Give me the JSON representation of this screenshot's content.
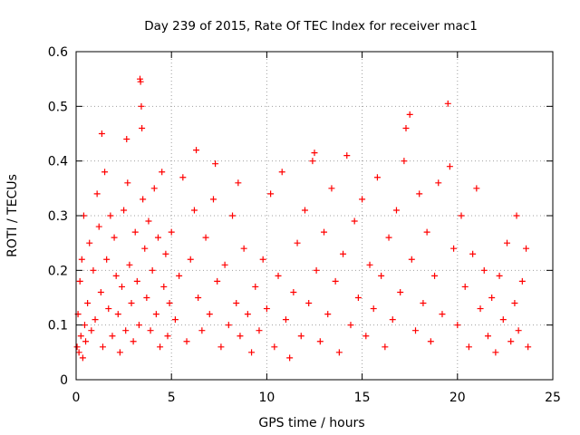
{
  "chart_data": {
    "type": "scatter",
    "title": "Day 239 of 2015, Rate Of TEC Index for receiver mac1",
    "xlabel": "GPS time / hours",
    "ylabel": "ROTI / TECUs",
    "xlim": [
      0,
      25
    ],
    "ylim": [
      0,
      0.6
    ],
    "x_ticks": [
      0,
      5,
      10,
      15,
      20,
      25
    ],
    "x_tick_labels": [
      "0",
      "5",
      "10",
      "15",
      "20",
      "25"
    ],
    "y_ticks": [
      0,
      0.1,
      0.2,
      0.3,
      0.4,
      0.5,
      0.6
    ],
    "y_tick_labels": [
      "0",
      "0.1",
      "0.2",
      "0.3",
      "0.4",
      "0.5",
      "0.6"
    ],
    "grid": true,
    "marker": "+",
    "marker_color": "#ff0000",
    "series": [
      {
        "values": [
          [
            0.05,
            0.06
          ],
          [
            0.1,
            0.12
          ],
          [
            0.15,
            0.05
          ],
          [
            0.2,
            0.18
          ],
          [
            0.25,
            0.08
          ],
          [
            0.3,
            0.22
          ],
          [
            0.35,
            0.04
          ],
          [
            0.4,
            0.3
          ],
          [
            0.45,
            0.1
          ],
          [
            0.5,
            0.07
          ],
          [
            0.6,
            0.14
          ],
          [
            0.7,
            0.25
          ],
          [
            0.8,
            0.09
          ],
          [
            0.9,
            0.2
          ],
          [
            1.0,
            0.11
          ],
          [
            1.1,
            0.34
          ],
          [
            1.2,
            0.28
          ],
          [
            1.3,
            0.16
          ],
          [
            1.35,
            0.45
          ],
          [
            1.4,
            0.06
          ],
          [
            1.5,
            0.38
          ],
          [
            1.6,
            0.22
          ],
          [
            1.7,
            0.13
          ],
          [
            1.8,
            0.3
          ],
          [
            1.9,
            0.08
          ],
          [
            2.0,
            0.26
          ],
          [
            2.1,
            0.19
          ],
          [
            2.2,
            0.12
          ],
          [
            2.3,
            0.05
          ],
          [
            2.4,
            0.17
          ],
          [
            2.5,
            0.31
          ],
          [
            2.6,
            0.09
          ],
          [
            2.65,
            0.44
          ],
          [
            2.7,
            0.36
          ],
          [
            2.8,
            0.21
          ],
          [
            2.9,
            0.14
          ],
          [
            3.0,
            0.07
          ],
          [
            3.1,
            0.27
          ],
          [
            3.2,
            0.18
          ],
          [
            3.3,
            0.1
          ],
          [
            3.35,
            0.55
          ],
          [
            3.38,
            0.545
          ],
          [
            3.42,
            0.5
          ],
          [
            3.45,
            0.46
          ],
          [
            3.5,
            0.33
          ],
          [
            3.6,
            0.24
          ],
          [
            3.7,
            0.15
          ],
          [
            3.8,
            0.29
          ],
          [
            3.9,
            0.09
          ],
          [
            4.0,
            0.2
          ],
          [
            4.1,
            0.35
          ],
          [
            4.2,
            0.12
          ],
          [
            4.3,
            0.26
          ],
          [
            4.4,
            0.06
          ],
          [
            4.5,
            0.38
          ],
          [
            4.6,
            0.17
          ],
          [
            4.7,
            0.23
          ],
          [
            4.8,
            0.08
          ],
          [
            4.9,
            0.14
          ],
          [
            5.0,
            0.27
          ],
          [
            5.2,
            0.11
          ],
          [
            5.4,
            0.19
          ],
          [
            5.6,
            0.37
          ],
          [
            5.8,
            0.07
          ],
          [
            6.0,
            0.22
          ],
          [
            6.2,
            0.31
          ],
          [
            6.3,
            0.42
          ],
          [
            6.4,
            0.15
          ],
          [
            6.6,
            0.09
          ],
          [
            6.8,
            0.26
          ],
          [
            7.0,
            0.12
          ],
          [
            7.2,
            0.33
          ],
          [
            7.3,
            0.395
          ],
          [
            7.4,
            0.18
          ],
          [
            7.6,
            0.06
          ],
          [
            7.8,
            0.21
          ],
          [
            8.0,
            0.1
          ],
          [
            8.2,
            0.3
          ],
          [
            8.4,
            0.14
          ],
          [
            8.5,
            0.36
          ],
          [
            8.6,
            0.08
          ],
          [
            8.8,
            0.24
          ],
          [
            9.0,
            0.12
          ],
          [
            9.2,
            0.05
          ],
          [
            9.4,
            0.17
          ],
          [
            9.6,
            0.09
          ],
          [
            9.8,
            0.22
          ],
          [
            10.0,
            0.13
          ],
          [
            10.2,
            0.34
          ],
          [
            10.4,
            0.06
          ],
          [
            10.6,
            0.19
          ],
          [
            10.8,
            0.38
          ],
          [
            11.0,
            0.11
          ],
          [
            11.2,
            0.04
          ],
          [
            11.4,
            0.16
          ],
          [
            11.6,
            0.25
          ],
          [
            11.8,
            0.08
          ],
          [
            12.0,
            0.31
          ],
          [
            12.2,
            0.14
          ],
          [
            12.4,
            0.4
          ],
          [
            12.5,
            0.415
          ],
          [
            12.6,
            0.2
          ],
          [
            12.8,
            0.07
          ],
          [
            13.0,
            0.27
          ],
          [
            13.2,
            0.12
          ],
          [
            13.4,
            0.35
          ],
          [
            13.6,
            0.18
          ],
          [
            13.8,
            0.05
          ],
          [
            14.0,
            0.23
          ],
          [
            14.2,
            0.41
          ],
          [
            14.4,
            0.1
          ],
          [
            14.6,
            0.29
          ],
          [
            14.8,
            0.15
          ],
          [
            15.0,
            0.33
          ],
          [
            15.2,
            0.08
          ],
          [
            15.4,
            0.21
          ],
          [
            15.6,
            0.13
          ],
          [
            15.8,
            0.37
          ],
          [
            16.0,
            0.19
          ],
          [
            16.2,
            0.06
          ],
          [
            16.4,
            0.26
          ],
          [
            16.6,
            0.11
          ],
          [
            16.8,
            0.31
          ],
          [
            17.0,
            0.16
          ],
          [
            17.2,
            0.4
          ],
          [
            17.3,
            0.46
          ],
          [
            17.5,
            0.485
          ],
          [
            17.6,
            0.22
          ],
          [
            17.8,
            0.09
          ],
          [
            18.0,
            0.34
          ],
          [
            18.2,
            0.14
          ],
          [
            18.4,
            0.27
          ],
          [
            18.6,
            0.07
          ],
          [
            18.8,
            0.19
          ],
          [
            19.0,
            0.36
          ],
          [
            19.2,
            0.12
          ],
          [
            19.5,
            0.505
          ],
          [
            19.6,
            0.39
          ],
          [
            19.8,
            0.24
          ],
          [
            20.0,
            0.1
          ],
          [
            20.2,
            0.3
          ],
          [
            20.4,
            0.17
          ],
          [
            20.6,
            0.06
          ],
          [
            20.8,
            0.23
          ],
          [
            21.0,
            0.35
          ],
          [
            21.2,
            0.13
          ],
          [
            21.4,
            0.2
          ],
          [
            21.6,
            0.08
          ],
          [
            21.8,
            0.15
          ],
          [
            22.0,
            0.05
          ],
          [
            22.2,
            0.19
          ],
          [
            22.4,
            0.11
          ],
          [
            22.6,
            0.25
          ],
          [
            22.8,
            0.07
          ],
          [
            23.0,
            0.14
          ],
          [
            23.1,
            0.3
          ],
          [
            23.2,
            0.09
          ],
          [
            23.4,
            0.18
          ],
          [
            23.6,
            0.24
          ],
          [
            23.7,
            0.06
          ]
        ]
      }
    ]
  }
}
